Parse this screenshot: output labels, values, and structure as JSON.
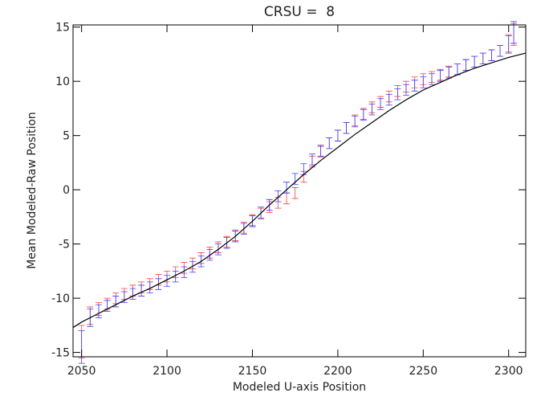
{
  "chart_data": {
    "type": "errorbar",
    "title": "CRSU =  8",
    "x_label": "Modeled U-axis Position",
    "y_label": "Mean Modeled-Raw Position",
    "xlim": [
      2045,
      2310
    ],
    "ylim": [
      -15.4,
      15.2
    ],
    "xticks": [
      2050,
      2100,
      2150,
      2200,
      2250,
      2300
    ],
    "yticks": [
      -15,
      -10,
      -5,
      0,
      5,
      10,
      15
    ],
    "x": [
      2050,
      2055,
      2060,
      2065,
      2070,
      2075,
      2080,
      2085,
      2090,
      2095,
      2100,
      2105,
      2110,
      2115,
      2120,
      2125,
      2130,
      2135,
      2140,
      2145,
      2150,
      2155,
      2160,
      2165,
      2170,
      2175,
      2180,
      2185,
      2190,
      2195,
      2200,
      2205,
      2210,
      2215,
      2220,
      2225,
      2230,
      2235,
      2240,
      2245,
      2250,
      2255,
      2260,
      2265,
      2270,
      2275,
      2280,
      2285,
      2290,
      2295,
      2300,
      2303
    ],
    "series": [
      {
        "color": "#ff4040",
        "values": [
          -14.0,
          -11.6,
          -11.0,
          -10.5,
          -10.0,
          -9.6,
          -9.3,
          -9.0,
          -8.7,
          -8.3,
          -8.0,
          -7.6,
          -7.2,
          -6.8,
          -6.3,
          -5.8,
          -5.3,
          -4.8,
          -4.2,
          -3.5,
          -2.8,
          -2.2,
          -1.6,
          -1.2,
          -0.8,
          -0.3,
          1.2,
          2.6,
          3.5,
          4.3,
          5.0,
          5.7,
          6.4,
          7.0,
          7.6,
          8.1,
          8.6,
          9.1,
          9.5,
          9.9,
          10.2,
          10.4,
          10.6,
          10.9,
          11.1,
          11.5,
          11.8,
          12.1,
          12.4,
          12.8,
          13.5,
          14.3
        ],
        "errors": [
          1.5,
          0.8,
          0.6,
          0.5,
          0.5,
          0.5,
          0.5,
          0.5,
          0.5,
          0.5,
          0.5,
          0.5,
          0.5,
          0.5,
          0.5,
          0.5,
          0.5,
          0.5,
          0.5,
          0.5,
          0.5,
          0.5,
          0.5,
          0.5,
          0.5,
          0.5,
          0.5,
          0.5,
          0.5,
          0.5,
          0.5,
          0.5,
          0.5,
          0.5,
          0.5,
          0.5,
          0.5,
          0.5,
          0.5,
          0.5,
          0.5,
          0.5,
          0.5,
          0.5,
          0.5,
          0.5,
          0.5,
          0.5,
          0.5,
          0.5,
          0.8,
          1.0
        ]
      },
      {
        "color": "#3a3aff",
        "values": [
          -14.5,
          -11.8,
          -11.2,
          -10.7,
          -10.3,
          -9.9,
          -9.6,
          -9.3,
          -9.0,
          -8.7,
          -8.4,
          -8.0,
          -7.6,
          -7.1,
          -6.6,
          -6.0,
          -5.5,
          -4.9,
          -4.3,
          -3.6,
          -2.9,
          -2.1,
          -1.4,
          -0.6,
          0.2,
          1.0,
          1.9,
          2.8,
          3.6,
          4.3,
          5.0,
          5.7,
          6.3,
          6.9,
          7.4,
          7.9,
          8.3,
          8.8,
          9.2,
          9.6,
          9.9,
          10.2,
          10.5,
          10.8,
          11.1,
          11.5,
          11.8,
          12.1,
          12.4,
          12.8,
          13.4,
          14.5
        ],
        "errors": [
          1.5,
          0.8,
          0.6,
          0.5,
          0.5,
          0.5,
          0.5,
          0.5,
          0.5,
          0.5,
          0.5,
          0.5,
          0.5,
          0.5,
          0.5,
          0.5,
          0.5,
          0.5,
          0.5,
          0.5,
          0.5,
          0.5,
          0.5,
          0.5,
          0.5,
          0.5,
          0.5,
          0.5,
          0.5,
          0.5,
          0.5,
          0.5,
          0.5,
          0.5,
          0.5,
          0.5,
          0.5,
          0.5,
          0.5,
          0.5,
          0.5,
          0.5,
          0.5,
          0.5,
          0.5,
          0.5,
          0.5,
          0.5,
          0.5,
          0.5,
          0.8,
          1.0
        ]
      }
    ],
    "model": {
      "color": "#000000",
      "x": [
        2045,
        2050,
        2060,
        2070,
        2080,
        2090,
        2100,
        2110,
        2120,
        2130,
        2140,
        2150,
        2160,
        2170,
        2180,
        2190,
        2200,
        2210,
        2220,
        2230,
        2240,
        2250,
        2260,
        2270,
        2280,
        2290,
        2300,
        2310
      ],
      "values": [
        -12.7,
        -12.2,
        -11.4,
        -10.6,
        -9.8,
        -9.1,
        -8.3,
        -7.5,
        -6.6,
        -5.5,
        -4.3,
        -2.9,
        -1.4,
        0.0,
        1.4,
        2.7,
        3.9,
        5.1,
        6.2,
        7.3,
        8.3,
        9.2,
        9.9,
        10.6,
        11.2,
        11.7,
        12.2,
        12.6
      ]
    }
  }
}
